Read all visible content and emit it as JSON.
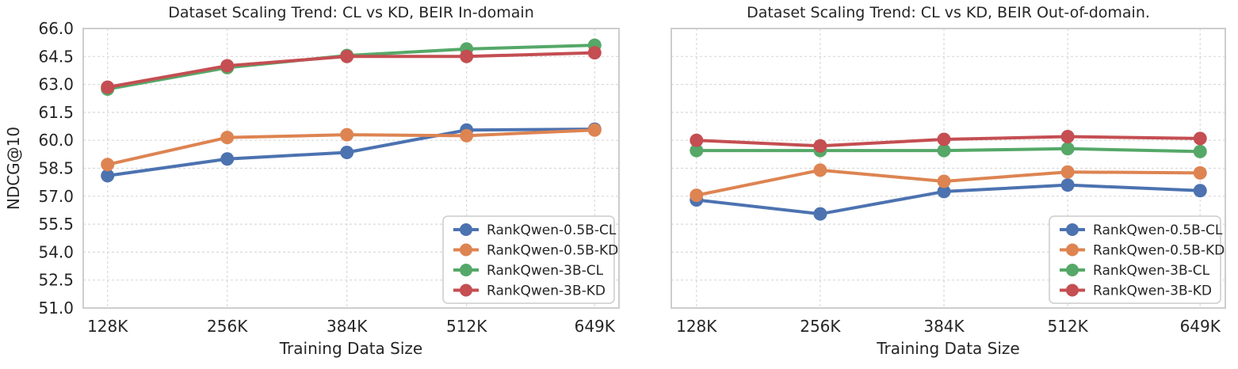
{
  "figure": {
    "background": "#ffffff",
    "text_color": "#262626",
    "grid_color": "#d9d9d9",
    "spine_color": "#cdcdcd",
    "legend_border_color": "#cccccc",
    "legend_background": "#ffffff"
  },
  "chart_data": [
    {
      "type": "line",
      "title": "Dataset Scaling Trend: CL vs KD, BEIR In-domain",
      "xlabel": "Training Data Size",
      "ylabel": "NDCG@10",
      "x": [
        128,
        256,
        384,
        512,
        649
      ],
      "x_tick_labels": [
        "128K",
        "256K",
        "384K",
        "512K",
        "649K"
      ],
      "ylim": [
        51.0,
        66.0
      ],
      "y_ticks": [
        51.0,
        52.5,
        54.0,
        55.5,
        57.0,
        58.5,
        60.0,
        61.5,
        63.0,
        64.5,
        66.0
      ],
      "show_y_tick_labels": true,
      "grid": true,
      "grid_style": "dashed",
      "legend_position": "lower right",
      "series": [
        {
          "name": "RankQwen-0.5B-CL",
          "color": "#4C72B0",
          "values": [
            58.1,
            59.0,
            59.35,
            60.55,
            60.6
          ]
        },
        {
          "name": "RankQwen-0.5B-KD",
          "color": "#DD8452",
          "values": [
            58.7,
            60.15,
            60.3,
            60.25,
            60.55
          ]
        },
        {
          "name": "RankQwen-3B-CL",
          "color": "#55A868",
          "values": [
            62.75,
            63.9,
            64.55,
            64.9,
            65.1
          ]
        },
        {
          "name": "RankQwen-3B-KD",
          "color": "#C44E52",
          "values": [
            62.85,
            64.0,
            64.5,
            64.5,
            64.7
          ]
        }
      ]
    },
    {
      "type": "line",
      "title": "Dataset Scaling Trend: CL vs KD, BEIR Out-of-domain.",
      "xlabel": "Training Data Size",
      "ylabel": "",
      "x": [
        128,
        256,
        384,
        512,
        649
      ],
      "x_tick_labels": [
        "128K",
        "256K",
        "384K",
        "512K",
        "649K"
      ],
      "ylim": [
        51.0,
        66.0
      ],
      "y_ticks": [
        51.0,
        52.5,
        54.0,
        55.5,
        57.0,
        58.5,
        60.0,
        61.5,
        63.0,
        64.5,
        66.0
      ],
      "show_y_tick_labels": false,
      "grid": true,
      "grid_style": "dashed",
      "legend_position": "lower right",
      "series": [
        {
          "name": "RankQwen-0.5B-CL",
          "color": "#4C72B0",
          "values": [
            56.8,
            56.05,
            57.25,
            57.6,
            57.3
          ]
        },
        {
          "name": "RankQwen-0.5B-KD",
          "color": "#DD8452",
          "values": [
            57.05,
            58.4,
            57.8,
            58.3,
            58.25
          ]
        },
        {
          "name": "RankQwen-3B-CL",
          "color": "#55A868",
          "values": [
            59.45,
            59.45,
            59.45,
            59.55,
            59.4
          ]
        },
        {
          "name": "RankQwen-3B-KD",
          "color": "#C44E52",
          "values": [
            60.0,
            59.7,
            60.05,
            60.2,
            60.1
          ]
        }
      ]
    }
  ]
}
